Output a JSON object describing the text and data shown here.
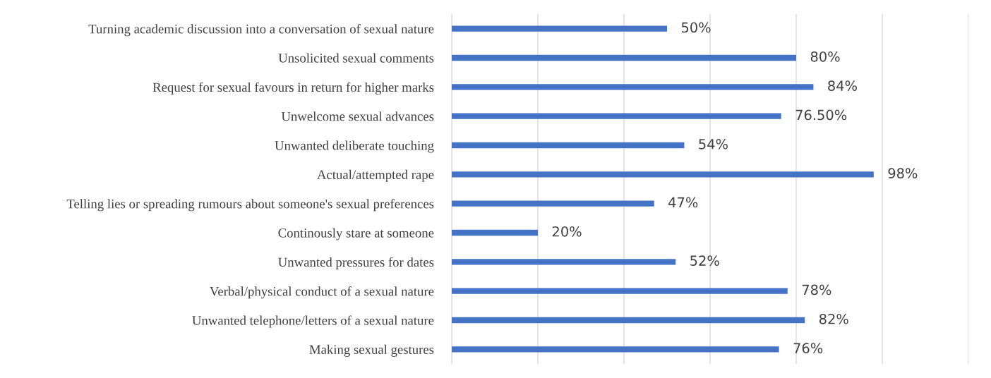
{
  "chart_data": {
    "type": "bar",
    "orientation": "horizontal",
    "categories": [
      "Turning academic discussion into a conversation of sexual nature",
      "Unsolicited sexual comments",
      "Request for sexual favours in return for higher marks",
      "Unwelcome sexual advances",
      "Unwanted deliberate touching",
      "Actual/attempted rape",
      "Telling lies or spreading rumours about someone's sexual preferences",
      "Continously stare at someone",
      "Unwanted pressures for dates",
      "Verbal/physical conduct of a sexual nature",
      "Unwanted telephone/letters of a sexual nature",
      "Making sexual gestures"
    ],
    "values": [
      50,
      80,
      84,
      76.5,
      54,
      98,
      47,
      20,
      52,
      78,
      82,
      76
    ],
    "value_labels": [
      "50%",
      "80%",
      "84%",
      "76.50%",
      "54%",
      "98%",
      "47%",
      "20%",
      "52%",
      "78%",
      "82%",
      "76%"
    ],
    "color": "#4472c4",
    "xlim": [
      0,
      120
    ],
    "xticks": [
      {
        "value": 0,
        "label": null
      },
      {
        "value": 20,
        "label": null
      },
      {
        "value": 40,
        "label": null
      },
      {
        "value": 60,
        "label": null
      },
      {
        "value": 80,
        "label": null
      },
      {
        "value": 100,
        "label": null
      },
      {
        "value": 120,
        "label": null
      }
    ],
    "grid": "x",
    "legend": false
  }
}
